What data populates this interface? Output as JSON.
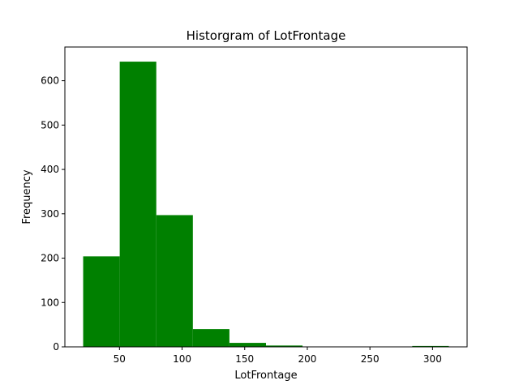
{
  "chart_data": {
    "type": "bar",
    "title": "Historgram of LotFrontage",
    "xlabel": "LotFrontage",
    "ylabel": "Frequency",
    "bar_color": "#008000",
    "xlim": [
      6.4,
      327.6
    ],
    "ylim": [
      0,
      676
    ],
    "xticks": [
      50,
      100,
      150,
      200,
      250,
      300
    ],
    "yticks": [
      0,
      100,
      200,
      300,
      400,
      500,
      600
    ],
    "bins": [
      {
        "x0": 21.0,
        "x1": 50.2,
        "count": 204
      },
      {
        "x0": 50.2,
        "x1": 79.4,
        "count": 643
      },
      {
        "x0": 79.4,
        "x1": 108.6,
        "count": 297
      },
      {
        "x0": 108.6,
        "x1": 137.8,
        "count": 40
      },
      {
        "x0": 137.8,
        "x1": 167.0,
        "count": 9
      },
      {
        "x0": 167.0,
        "x1": 196.2,
        "count": 3
      },
      {
        "x0": 196.2,
        "x1": 225.4,
        "count": 0
      },
      {
        "x0": 225.4,
        "x1": 254.6,
        "count": 0
      },
      {
        "x0": 254.6,
        "x1": 283.8,
        "count": 0
      },
      {
        "x0": 283.8,
        "x1": 313.0,
        "count": 2
      }
    ],
    "grid": false,
    "legend": "none"
  }
}
